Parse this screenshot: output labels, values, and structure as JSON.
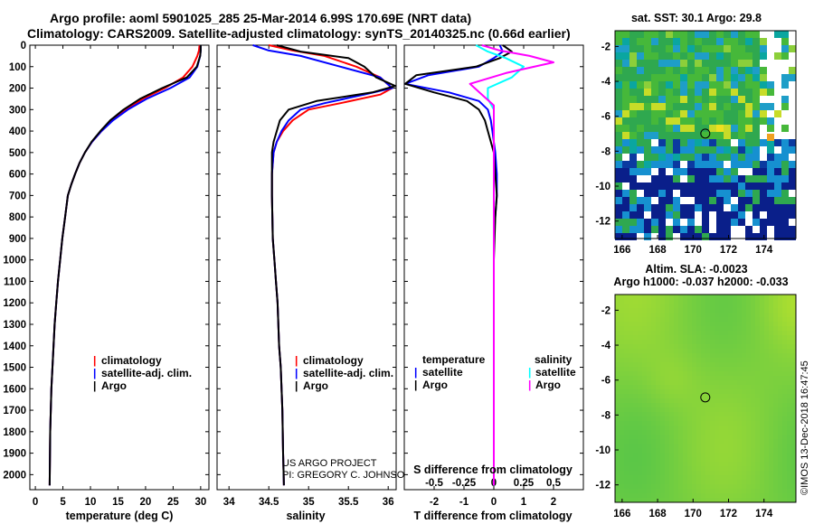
{
  "header": {
    "title_line1": "Argo profile: aoml 5901025_285 25-Mar-2014 6.99S 170.69E (NRT data)",
    "title_line2": "Climatology: CARS2009. Satellite-adjusted climatology: synTS_20140325.nc (0.66d earlier)"
  },
  "credits": {
    "project": "US ARGO PROJECT",
    "pi": "PI: GREGORY C. JOHNSON",
    "imos": "©IMOS 13-Dec-2018 16:47:45"
  },
  "colors": {
    "climatology": "#ff0000",
    "satellite": "#0000ff",
    "argo": "#000000",
    "sal_satellite": "#00ffff",
    "sal_argo": "#ff00ff"
  },
  "chart_data": [
    {
      "type": "line",
      "name": "temperature-profile",
      "xlabel": "temperature (deg C)",
      "ylabel": "",
      "xlim": [
        -1,
        31.5
      ],
      "ylim": [
        2070,
        0
      ],
      "xticks": [
        0,
        5,
        10,
        15,
        20,
        25,
        30
      ],
      "yticks": [
        0,
        100,
        200,
        300,
        400,
        500,
        600,
        700,
        800,
        900,
        1000,
        1100,
        1200,
        1300,
        1400,
        1500,
        1600,
        1700,
        1800,
        1900,
        2000
      ],
      "legend": {
        "position": "bottom-right",
        "entries": [
          "climatology",
          "satellite-adj. clim.",
          "Argo"
        ]
      },
      "series": [
        {
          "name": "climatology",
          "color": "#ff0000",
          "x": [
            29.8,
            29.7,
            29.4,
            28.5,
            26.8,
            23.5,
            19.5,
            16.5,
            14.0,
            12.0,
            10.3,
            9.0,
            8.0,
            7.2,
            6.5,
            5.9,
            5.4,
            4.9,
            4.5,
            4.1,
            3.8,
            3.5,
            3.3,
            3.1,
            2.9,
            2.7,
            2.6
          ],
          "y": [
            0,
            25,
            50,
            100,
            150,
            200,
            250,
            300,
            350,
            400,
            450,
            500,
            550,
            600,
            650,
            700,
            800,
            900,
            1000,
            1100,
            1200,
            1300,
            1400,
            1500,
            1600,
            1800,
            2050
          ]
        },
        {
          "name": "satellite-adj. clim.",
          "color": "#0000ff",
          "x": [
            30.0,
            30.0,
            29.9,
            29.4,
            28.0,
            24.5,
            20.2,
            16.8,
            14.1,
            12.0,
            10.3,
            9.0,
            8.0,
            7.2,
            6.5,
            5.9,
            5.4,
            4.9,
            4.5,
            4.1,
            3.8,
            3.5,
            3.3,
            3.1,
            2.9,
            2.7,
            2.6
          ],
          "y": [
            0,
            25,
            50,
            100,
            150,
            200,
            250,
            300,
            350,
            400,
            450,
            500,
            550,
            600,
            650,
            700,
            800,
            900,
            1000,
            1100,
            1200,
            1300,
            1400,
            1500,
            1600,
            1800,
            2050
          ]
        },
        {
          "name": "Argo",
          "color": "#000000",
          "x": [
            30.0,
            30.0,
            29.9,
            29.3,
            27.5,
            23.0,
            19.0,
            16.0,
            13.6,
            11.8,
            10.2,
            9.0,
            8.0,
            7.2,
            6.5,
            5.9,
            5.4,
            4.9,
            4.5,
            4.1,
            3.8,
            3.5,
            3.3,
            3.1,
            2.9,
            2.7,
            2.6
          ],
          "y": [
            0,
            25,
            50,
            100,
            150,
            200,
            250,
            300,
            350,
            400,
            450,
            500,
            550,
            600,
            650,
            700,
            800,
            900,
            1000,
            1100,
            1200,
            1300,
            1400,
            1500,
            1600,
            1800,
            2050
          ]
        }
      ]
    },
    {
      "type": "line",
      "name": "salinity-profile",
      "xlabel": "salinity",
      "ylabel": "",
      "xlim": [
        33.85,
        36.1
      ],
      "ylim": [
        2070,
        0
      ],
      "xticks": [
        34,
        34.5,
        35,
        35.5,
        36
      ],
      "legend": {
        "position": "bottom-right",
        "entries": [
          "climatology",
          "satellite-adj. clim.",
          "Argo"
        ]
      },
      "series": [
        {
          "name": "climatology",
          "color": "#ff0000",
          "x": [
            34.5,
            34.8,
            35.2,
            35.6,
            35.9,
            36.05,
            35.9,
            35.4,
            35.0,
            34.8,
            34.68,
            34.6,
            34.56,
            34.54,
            34.54,
            34.55,
            34.57,
            34.59,
            34.61,
            34.63,
            34.65,
            34.67,
            34.68,
            34.69
          ],
          "y": [
            0,
            25,
            50,
            100,
            150,
            200,
            230,
            270,
            300,
            350,
            400,
            450,
            500,
            600,
            700,
            900,
            1000,
            1100,
            1200,
            1400,
            1500,
            1700,
            1900,
            2050
          ]
        },
        {
          "name": "satellite-adj. clim.",
          "color": "#0000ff",
          "x": [
            34.3,
            34.5,
            34.9,
            35.4,
            35.9,
            36.05,
            35.7,
            35.2,
            34.9,
            34.75,
            34.66,
            34.6,
            34.56,
            34.54,
            34.54,
            34.55,
            34.57,
            34.59,
            34.61,
            34.63,
            34.65,
            34.67,
            34.68,
            34.69
          ],
          "y": [
            0,
            25,
            50,
            100,
            150,
            200,
            230,
            270,
            300,
            350,
            400,
            450,
            500,
            600,
            700,
            900,
            1000,
            1100,
            1200,
            1400,
            1500,
            1700,
            1900,
            2050
          ]
        },
        {
          "name": "Argo",
          "color": "#000000",
          "x": [
            34.6,
            34.9,
            35.5,
            35.7,
            35.85,
            36.1,
            35.8,
            35.1,
            34.75,
            34.64,
            34.6,
            34.56,
            34.54,
            34.54,
            34.55,
            34.57,
            34.59,
            34.61,
            34.63,
            34.65,
            34.67,
            34.68,
            34.69
          ],
          "y": [
            0,
            30,
            60,
            100,
            150,
            190,
            220,
            260,
            300,
            350,
            400,
            450,
            500,
            700,
            900,
            1000,
            1100,
            1200,
            1400,
            1500,
            1700,
            1900,
            2050
          ]
        }
      ]
    },
    {
      "type": "line",
      "name": "difference-profile",
      "xlabel": "T difference from climatology",
      "x2label": "S difference from climatology",
      "ylabel": "",
      "xlim": [
        -3.0,
        3.0
      ],
      "x2lim": [
        -0.75,
        0.75
      ],
      "ylim": [
        2070,
        0
      ],
      "xticks": [
        -2,
        -1,
        0,
        1,
        2
      ],
      "x2ticks": [
        -0.5,
        -0.25,
        0,
        0.25,
        0.5
      ],
      "x2ticklabels": [
        "-0.5",
        "-0.25",
        "0",
        "0.25",
        "0.5"
      ],
      "legend": {
        "position": "bottom",
        "temperature_heading": "temperature",
        "salinity_heading": "salinity",
        "entries": [
          "satellite",
          "Argo",
          "satellite",
          "Argo"
        ]
      },
      "series": [
        {
          "name": "satellite",
          "group": "temperature",
          "color": "#0000ff",
          "axis": "T",
          "x": [
            0.2,
            0.3,
            0.0,
            -0.5,
            -2.2,
            -3.0,
            -1.5,
            -0.5,
            -0.2,
            -0.1,
            -0.05,
            0.0,
            0.05,
            0.1,
            0.1,
            0.05,
            0.0,
            0.0,
            0.0,
            0.0
          ],
          "y": [
            0,
            30,
            60,
            100,
            140,
            180,
            220,
            260,
            300,
            350,
            400,
            450,
            500,
            600,
            700,
            800,
            900,
            1100,
            1500,
            2050
          ]
        },
        {
          "name": "Argo",
          "group": "temperature",
          "color": "#000000",
          "axis": "T",
          "x": [
            0.3,
            0.6,
            0.2,
            -0.6,
            -2.6,
            -3.4,
            -2.0,
            -0.9,
            -0.5,
            -0.3,
            -0.2,
            -0.1,
            0.0,
            0.05,
            0.1,
            0.05,
            0.0,
            0.0,
            0.0
          ],
          "y": [
            0,
            30,
            60,
            100,
            140,
            180,
            220,
            260,
            300,
            350,
            400,
            450,
            500,
            600,
            700,
            800,
            1000,
            1500,
            2050
          ]
        },
        {
          "name": "satellite",
          "group": "salinity",
          "color": "#00ffff",
          "axis": "S",
          "x": [
            -0.15,
            -0.05,
            0.1,
            0.25,
            0.15,
            -0.05,
            -0.05,
            0.0,
            0.0,
            0.0,
            0.0,
            0.0
          ],
          "y": [
            0,
            30,
            60,
            100,
            150,
            200,
            250,
            300,
            400,
            600,
            1000,
            2050
          ]
        },
        {
          "name": "Argo",
          "group": "salinity",
          "color": "#ff00ff",
          "axis": "S",
          "x": [
            -0.1,
            0.05,
            0.3,
            0.5,
            0.1,
            -0.2,
            -0.1,
            0.0,
            0.0,
            0.0,
            0.0,
            0.0
          ],
          "y": [
            0,
            25,
            50,
            80,
            130,
            180,
            230,
            280,
            350,
            500,
            1000,
            2050
          ]
        }
      ]
    },
    {
      "type": "heatmap",
      "name": "sst-map",
      "title": "sat. SST: 30.1 Argo: 29.8",
      "xlim": [
        165.6,
        175.8
      ],
      "ylim": [
        -13.0,
        -1.1
      ],
      "xticks": [
        166,
        168,
        170,
        172,
        174
      ],
      "yticks": [
        -2,
        -4,
        -6,
        -8,
        -10,
        -12
      ],
      "marker": {
        "x": 170.69,
        "y": -6.99
      }
    },
    {
      "type": "heatmap",
      "name": "sla-map",
      "title": "Altim. SLA: -0.0023",
      "subtitle": "Argo h1000: -0.037 h2000: -0.033",
      "xlim": [
        165.6,
        175.8
      ],
      "ylim": [
        -13.0,
        -1.1
      ],
      "xticks": [
        166,
        168,
        170,
        172,
        174
      ],
      "yticks": [
        -2,
        -4,
        -6,
        -8,
        -10,
        -12
      ],
      "marker": {
        "x": 170.69,
        "y": -6.99
      }
    }
  ]
}
